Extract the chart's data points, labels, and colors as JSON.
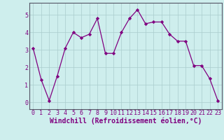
{
  "x": [
    0,
    1,
    2,
    3,
    4,
    5,
    6,
    7,
    8,
    9,
    10,
    11,
    12,
    13,
    14,
    15,
    16,
    17,
    18,
    19,
    20,
    21,
    22,
    23
  ],
  "y": [
    3.1,
    1.3,
    0.1,
    1.5,
    3.1,
    4.0,
    3.7,
    3.9,
    4.8,
    2.8,
    2.8,
    4.0,
    4.8,
    5.3,
    4.5,
    4.6,
    4.6,
    3.9,
    3.5,
    3.5,
    2.1,
    2.1,
    1.35,
    0.1
  ],
  "line_color": "#800080",
  "marker": "D",
  "marker_size": 2.2,
  "bg_color": "#ceeeed",
  "grid_color": "#aacccc",
  "xlabel": "Windchill (Refroidissement éolien,°C)",
  "xlabel_fontsize": 7,
  "ylabel_ticks": [
    0,
    1,
    2,
    3,
    4,
    5
  ],
  "xlim": [
    -0.5,
    23.5
  ],
  "ylim": [
    -0.4,
    5.7
  ],
  "xticks": [
    0,
    1,
    2,
    3,
    4,
    5,
    6,
    7,
    8,
    9,
    10,
    11,
    12,
    13,
    14,
    15,
    16,
    17,
    18,
    19,
    20,
    21,
    22,
    23
  ],
  "tick_fontsize": 6
}
